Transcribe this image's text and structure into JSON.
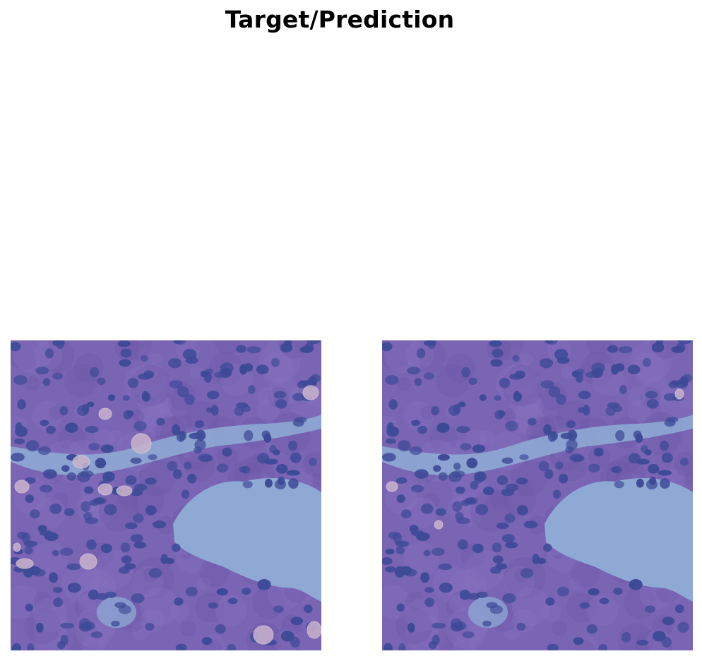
{
  "figure": {
    "title": "Target/Prediction"
  },
  "panels": [
    {
      "role": "target",
      "highlight_color": "#c8b0c8"
    },
    {
      "role": "prediction",
      "highlight_color": "#c8b0c8"
    }
  ],
  "colors": {
    "tissue_base": "#7a64b4",
    "tissue_dark": "#5a4aa0",
    "nucleus": "#3d4a96",
    "lumen": "#8eaad4",
    "highlight": "#c9b3cc"
  }
}
